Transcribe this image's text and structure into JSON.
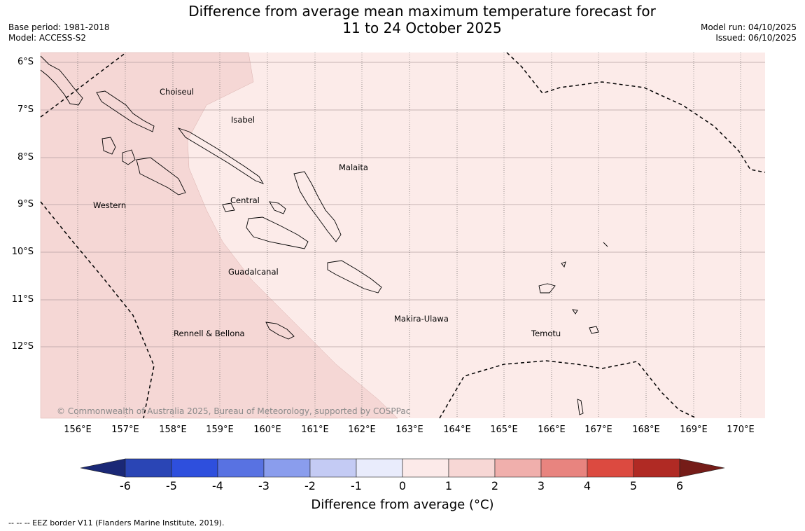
{
  "title_line1": "Difference from average mean maximum temperature forecast for",
  "title_line2": "11 to 24 October 2025",
  "base_period": "Base period: 1981-2018",
  "model": "Model: ACCESS-S2",
  "model_run": "Model run: 04/10/2025",
  "issued": "Issued: 06/10/2025",
  "lat_labels": [
    "6°S",
    "7°S",
    "8°S",
    "9°S",
    "10°S",
    "11°S",
    "12°S"
  ],
  "lon_labels": [
    "156°E",
    "157°E",
    "158°E",
    "159°E",
    "160°E",
    "161°E",
    "162°E",
    "163°E",
    "164°E",
    "165°E",
    "166°E",
    "167°E",
    "168°E",
    "169°E",
    "170°E"
  ],
  "provinces": {
    "choiseul": "Choiseul",
    "isabel": "Isabel",
    "malaita": "Malaita",
    "western": "Western",
    "central": "Central",
    "guadalcanal": "Guadalcanal",
    "makira": "Makira-Ulawa",
    "temotu": "Temotu",
    "rennell": "Rennell & Bellona"
  },
  "copyright": "© Commonwealth of Australia 2025, Bureau of Meteorology, supported by COSPPac",
  "colorbar": {
    "ticks": [
      "-6",
      "-5",
      "-4",
      "-3",
      "-2",
      "-1",
      "0",
      "1",
      "2",
      "3",
      "4",
      "5",
      "6"
    ],
    "colors": [
      "#1a2876",
      "#2a45b5",
      "#2e4fdd",
      "#5872e2",
      "#8a9ded",
      "#c4cbf4",
      "#e9ecfc",
      "#fceae9",
      "#f7d7d5",
      "#f0afac",
      "#e8847f",
      "#dc4a40",
      "#b02a24",
      "#751c18"
    ],
    "title": "Difference from average (°C)"
  },
  "footnote": "--  --  -- EEZ border V11 (Flanders Marine Institute, 2019).",
  "map_colors": {
    "anomaly_1_2": "#f5d7d5",
    "anomaly_0_1": "#fcebe9"
  }
}
